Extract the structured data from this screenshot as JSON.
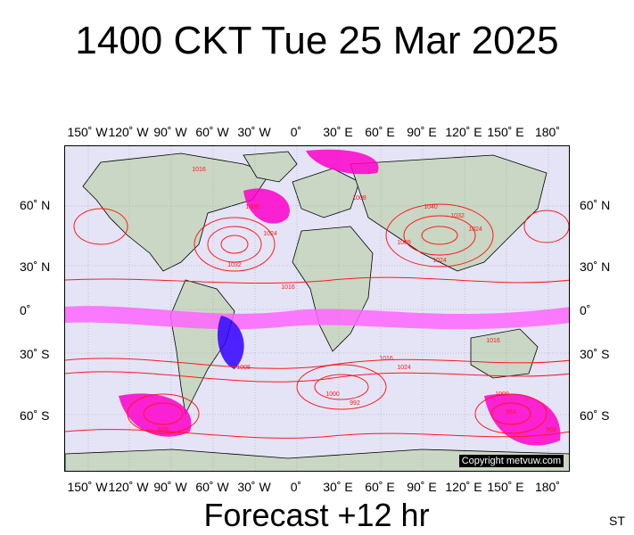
{
  "title": "1400 CKT Tue 25 Mar 2025",
  "footer": "Forecast +12 hr",
  "corner_text": "ST",
  "longitude_labels": [
    "150˚ W",
    "120˚ W",
    "90˚ W",
    "60˚ W",
    "30˚ W",
    "0˚",
    "30˚ E",
    "60˚ E",
    "90˚ E",
    "120˚ E",
    "150˚ E",
    "180˚"
  ],
  "latitude_labels": [
    "60˚ N",
    "30˚ N",
    "0˚",
    "30˚ S",
    "60˚ S"
  ],
  "copyright": "Copyright metvuw.com",
  "isobar_labels": [
    "1016",
    "1024",
    "1008",
    "1032",
    "1016",
    "1008",
    "1024",
    "1016",
    "1000",
    "992",
    "1024",
    "976",
    "1008",
    "1000",
    "1032",
    "1040",
    "984",
    "968",
    "1016",
    "1008",
    "1024"
  ],
  "colors": {
    "isobar": "#ff1a1a",
    "land": "#c9d7c4",
    "ocean": "#e4e4f6",
    "precip_light": "#ff66ff",
    "precip_heavy": "#ff00cc",
    "precip_intense": "#3300ff",
    "coastline": "#000000",
    "graticule": "#9a9a9a"
  }
}
